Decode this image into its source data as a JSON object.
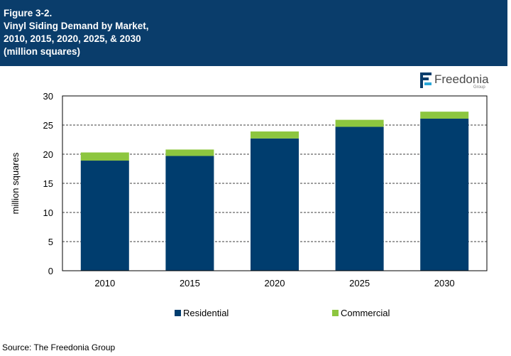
{
  "header": {
    "figure_label": "Figure 3-2.",
    "title_line1": "Vinyl Siding Demand by Market,",
    "title_line2": "2010, 2015, 2020, 2025, & 2030",
    "title_line3": "(million squares)"
  },
  "logo": {
    "name": "Freedonia",
    "sub": "Group"
  },
  "source": "Source: The Freedonia Group",
  "colors": {
    "header_bg": "#0a3d6b",
    "residential": "#003d6e",
    "commercial": "#8dc63f"
  },
  "chart_data": {
    "type": "bar",
    "stacked": true,
    "title": "Vinyl Siding Demand by Market, 2010, 2015, 2020, 2025, & 2030 (million squares)",
    "xlabel": "",
    "ylabel": "million squares",
    "ylim": [
      0,
      30
    ],
    "yticks": [
      0,
      5,
      10,
      15,
      20,
      25,
      30
    ],
    "grid": true,
    "legend_position": "bottom",
    "categories": [
      "2010",
      "2015",
      "2020",
      "2025",
      "2030"
    ],
    "series": [
      {
        "name": "Residential",
        "color": "#003d6e",
        "values": [
          18.9,
          19.7,
          22.7,
          24.7,
          26.1
        ]
      },
      {
        "name": "Commercial",
        "color": "#8dc63f",
        "values": [
          1.4,
          1.1,
          1.2,
          1.2,
          1.2
        ]
      }
    ]
  }
}
